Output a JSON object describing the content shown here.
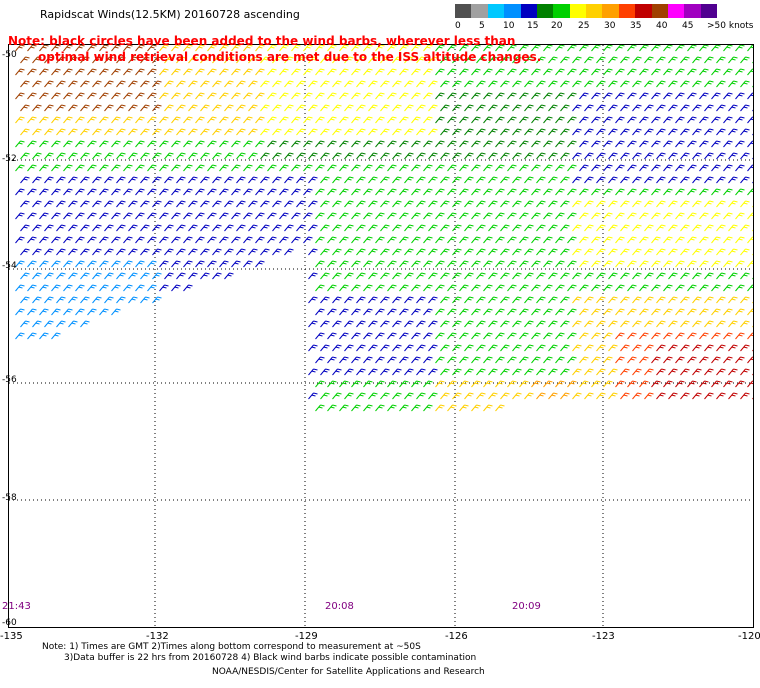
{
  "title": "Rapidscat Winds(12.5KM) 20160728 ascending",
  "note_line1": "Note: black circles have been added to the wind barbs, wherever less than",
  "note_line2": "optimal wind retrieval conditions are met due to the ISS altitude changes.",
  "legend": {
    "labels": [
      "0",
      "5",
      "10",
      "15",
      "20",
      "25",
      "30",
      "35",
      "40",
      "45",
      ">50 knots"
    ],
    "colors": [
      "#505050",
      "#a0a0a0",
      "#00c8ff",
      "#0090ff",
      "#0000c0",
      "#008000",
      "#00d000",
      "#ffff00",
      "#ffd000",
      "#ffa000",
      "#ff4000",
      "#c00000",
      "#a04000",
      "#ff00ff",
      "#a000c0",
      "#500090"
    ]
  },
  "axes": {
    "x_ticks": [
      "-135",
      "-132",
      "-129",
      "-126",
      "-123",
      "-120"
    ],
    "y_ticks": [
      "-50",
      "-52",
      "-54",
      "-56",
      "-58",
      "-60"
    ]
  },
  "time_labels": [
    "21:43",
    "20:08",
    "20:09"
  ],
  "footer": {
    "line1": "Note: 1) Times are GMT 2)Times along bottom correspond to measurement at ~50S",
    "line2": "3)Data buffer is 22 hrs from 20160728 4) Black wind barbs indicate possible contamination",
    "line3": "NOAA/NESDIS/Center for Satellite Applications and Research"
  }
}
